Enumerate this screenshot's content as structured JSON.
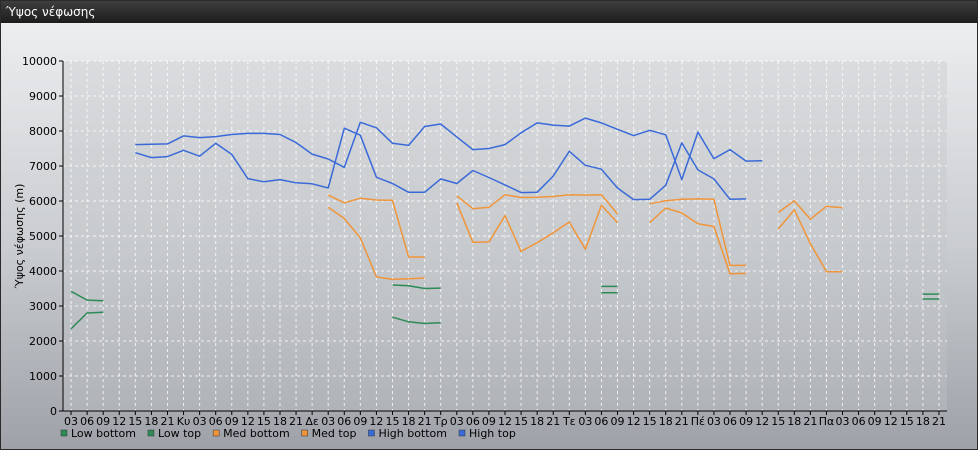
{
  "window": {
    "title": "Ύψος νέφωσης"
  },
  "chart_data": {
    "type": "line",
    "ylabel": "Ύψος νέφωσης (m)",
    "ylim": [
      0,
      10000
    ],
    "yticks": [
      0,
      1000,
      2000,
      3000,
      4000,
      5000,
      6000,
      7000,
      8000,
      9000,
      10000
    ],
    "grid": true,
    "legend_position": "bottom-left",
    "x": [
      "03",
      "06",
      "09",
      "12",
      "15",
      "18",
      "21",
      "Κυ",
      "03",
      "06",
      "09",
      "12",
      "15",
      "18",
      "21",
      "Δε",
      "03",
      "06",
      "09",
      "12",
      "15",
      "18",
      "21",
      "Τρ",
      "03",
      "06",
      "09",
      "12",
      "15",
      "18",
      "21",
      "Τε",
      "03",
      "06",
      "09",
      "12",
      "15",
      "18",
      "21",
      "Πέ",
      "03",
      "06",
      "09",
      "12",
      "15",
      "18",
      "21",
      "Πα",
      "03",
      "06",
      "09",
      "12",
      "15",
      "18",
      "21"
    ],
    "series": [
      {
        "name": "Low bottom",
        "color": "#2e8b57",
        "values": [
          2350,
          2800,
          2820,
          null,
          null,
          null,
          null,
          null,
          null,
          null,
          null,
          null,
          null,
          null,
          null,
          null,
          null,
          null,
          null,
          null,
          2680,
          2550,
          2500,
          2520,
          null,
          null,
          null,
          null,
          null,
          null,
          null,
          null,
          null,
          3380,
          3380,
          null,
          null,
          null,
          null,
          null,
          null,
          null,
          null,
          null,
          null,
          null,
          null,
          null,
          null,
          null,
          null,
          null,
          null,
          3200,
          3200
        ]
      },
      {
        "name": "Low top",
        "color": "#2e8b57",
        "values": [
          3420,
          3170,
          3150,
          null,
          null,
          null,
          null,
          null,
          null,
          null,
          null,
          null,
          null,
          null,
          null,
          null,
          null,
          null,
          null,
          null,
          3600,
          3580,
          3500,
          3510,
          null,
          null,
          null,
          null,
          null,
          null,
          null,
          null,
          null,
          3560,
          3560,
          null,
          null,
          null,
          null,
          null,
          null,
          null,
          null,
          null,
          null,
          null,
          null,
          null,
          null,
          null,
          null,
          null,
          null,
          3340,
          3340
        ]
      },
      {
        "name": "Med bottom",
        "color": "#f0953a",
        "values": [
          null,
          null,
          null,
          null,
          null,
          null,
          null,
          null,
          null,
          null,
          null,
          null,
          null,
          null,
          null,
          null,
          5820,
          5500,
          4950,
          3830,
          3760,
          3780,
          3800,
          null,
          5950,
          4820,
          4830,
          5580,
          4560,
          4810,
          5090,
          5400,
          4620,
          5880,
          5380,
          null,
          5380,
          5800,
          5660,
          5350,
          5270,
          3920,
          3930,
          null,
          5200,
          5750,
          4780,
          3980,
          3980,
          null,
          null,
          null,
          null,
          null,
          null
        ]
      },
      {
        "name": "Med top",
        "color": "#f0953a",
        "values": [
          null,
          null,
          null,
          null,
          null,
          null,
          null,
          null,
          null,
          null,
          null,
          null,
          null,
          null,
          null,
          null,
          6170,
          5950,
          6080,
          6030,
          6020,
          4400,
          4400,
          null,
          6150,
          5780,
          5820,
          6180,
          6100,
          6110,
          6130,
          6180,
          6170,
          6180,
          5630,
          null,
          5920,
          6010,
          6050,
          6060,
          6050,
          4160,
          4160,
          null,
          5670,
          6010,
          5480,
          5850,
          5810,
          null,
          null,
          null,
          null,
          null,
          null
        ]
      },
      {
        "name": "High bottom",
        "color": "#3a6ad8",
        "values": [
          null,
          null,
          null,
          null,
          7380,
          7240,
          7270,
          7450,
          7280,
          7650,
          7330,
          6640,
          6550,
          6610,
          6520,
          6490,
          6370,
          8080,
          7880,
          6680,
          6500,
          6250,
          6250,
          6630,
          6500,
          6870,
          6670,
          6460,
          6240,
          6250,
          6710,
          7420,
          7020,
          6910,
          6370,
          6040,
          6050,
          6450,
          7660,
          6890,
          6630,
          6050,
          6060,
          null,
          null,
          null,
          null,
          null,
          null,
          null,
          null,
          null,
          null,
          null,
          null
        ]
      },
      {
        "name": "High top",
        "color": "#3a6ad8",
        "values": [
          null,
          null,
          null,
          null,
          7610,
          7620,
          7630,
          7860,
          7810,
          7840,
          7900,
          7930,
          7930,
          7900,
          7670,
          7340,
          7200,
          6960,
          8250,
          8090,
          7650,
          7590,
          8130,
          8200,
          7830,
          7470,
          7500,
          7610,
          7950,
          8230,
          8170,
          8140,
          8370,
          8230,
          8050,
          7870,
          8020,
          7890,
          6610,
          7970,
          7210,
          7470,
          7140,
          7150,
          null,
          null,
          null,
          null,
          null,
          null,
          null,
          null,
          null,
          null,
          null
        ]
      }
    ]
  }
}
